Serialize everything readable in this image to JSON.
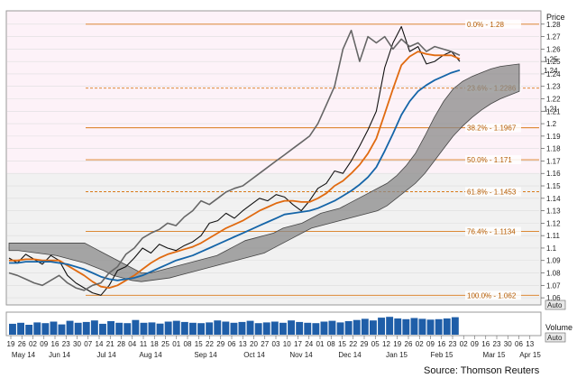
{
  "chart_data": {
    "type": "line",
    "title": "",
    "ylabel": "Price",
    "volume_label": "Volume",
    "auto_label": "Auto",
    "source": "Source: Thomson Reuters",
    "ylim": [
      1.055,
      1.29
    ],
    "y_ticks": [
      "1.28",
      "1.27",
      "1.26",
      "1.25",
      "1.24",
      "1.23",
      "1.22",
      "1.21",
      "1.2",
      "1.19",
      "1.18",
      "1.17",
      "1.16",
      "1.15",
      "1.14",
      "1.13",
      "1.12",
      "1.11",
      "1.1",
      "1.09",
      "1.08",
      "1.07",
      "1.06"
    ],
    "x_tick_days": [
      "19",
      "26",
      "02",
      "09",
      "16",
      "23",
      "30",
      "07",
      "14",
      "21",
      "28",
      "04",
      "11",
      "18",
      "25",
      "01",
      "08",
      "15",
      "22",
      "29",
      "06",
      "13",
      "20",
      "27",
      "03",
      "10",
      "17",
      "24",
      "01",
      "08",
      "15",
      "22",
      "29",
      "05",
      "12",
      "19",
      "26",
      "02",
      "09",
      "16",
      "23",
      "02",
      "09",
      "16",
      "23",
      "30",
      "06",
      "13"
    ],
    "x_month_labels": [
      "May 14",
      "Jun 14",
      "Jul 14",
      "Aug 14",
      "Sep 14",
      "Oct 14",
      "Nov 14",
      "Dec 14",
      "Jan 15",
      "Feb 15",
      "Mar 15",
      "Apr 15"
    ],
    "fib_levels": [
      {
        "label": "0.0% - 1.28",
        "value": 1.28
      },
      {
        "label": "23.6% - 1.2286",
        "value": 1.2286
      },
      {
        "label": "38.2% - 1.1967",
        "value": 1.1967
      },
      {
        "label": "50.0% - 1.171",
        "value": 1.171
      },
      {
        "label": "61.8% - 1.1453",
        "value": 1.1453
      },
      {
        "label": "76.4% - 1.1134",
        "value": 1.1134
      },
      {
        "label": "100.0% - 1.062",
        "value": 1.062
      }
    ],
    "last_price_markers": [
      "1.25",
      "1.24",
      "1.21"
    ],
    "series": [
      {
        "name": "",
        "color": "#111111",
        "values": [
          1.092,
          1.088,
          1.095,
          1.091,
          1.087,
          1.094,
          1.09,
          1.078,
          1.072,
          1.068,
          1.064,
          1.062,
          1.07,
          1.082,
          1.085,
          1.092,
          1.1,
          1.096,
          1.103,
          1.1,
          1.098,
          1.102,
          1.105,
          1.11,
          1.12,
          1.122,
          1.128,
          1.124,
          1.13,
          1.135,
          1.14,
          1.138,
          1.143,
          1.141,
          1.135,
          1.13,
          1.138,
          1.148,
          1.152,
          1.162,
          1.16,
          1.17,
          1.182,
          1.195,
          1.21,
          1.245,
          1.265,
          1.278,
          1.258,
          1.262,
          1.248,
          1.25,
          1.255,
          1.258,
          1.25
        ]
      },
      {
        "name": "",
        "color": "#e06a10",
        "values": [
          1.09,
          1.09,
          1.091,
          1.091,
          1.09,
          1.09,
          1.09,
          1.086,
          1.082,
          1.078,
          1.073,
          1.069,
          1.068,
          1.07,
          1.074,
          1.078,
          1.083,
          1.088,
          1.092,
          1.095,
          1.097,
          1.099,
          1.101,
          1.104,
          1.108,
          1.112,
          1.116,
          1.119,
          1.122,
          1.126,
          1.13,
          1.133,
          1.136,
          1.138,
          1.138,
          1.137,
          1.137,
          1.14,
          1.144,
          1.15,
          1.154,
          1.16,
          1.167,
          1.176,
          1.188,
          1.208,
          1.228,
          1.247,
          1.254,
          1.258,
          1.256,
          1.255,
          1.255,
          1.255,
          1.252
        ]
      },
      {
        "name": "",
        "color": "#1565a8",
        "values": [
          1.088,
          1.088,
          1.089,
          1.089,
          1.089,
          1.089,
          1.088,
          1.087,
          1.085,
          1.083,
          1.08,
          1.077,
          1.075,
          1.074,
          1.075,
          1.076,
          1.078,
          1.081,
          1.084,
          1.087,
          1.09,
          1.092,
          1.094,
          1.097,
          1.1,
          1.103,
          1.106,
          1.109,
          1.112,
          1.115,
          1.118,
          1.121,
          1.124,
          1.127,
          1.128,
          1.129,
          1.13,
          1.132,
          1.135,
          1.138,
          1.142,
          1.146,
          1.151,
          1.157,
          1.165,
          1.178,
          1.192,
          1.207,
          1.218,
          1.226,
          1.231,
          1.235,
          1.238,
          1.241,
          1.243
        ]
      },
      {
        "name": "",
        "color": "#666666",
        "values": [
          1.08,
          1.078,
          1.075,
          1.072,
          1.07,
          1.074,
          1.078,
          1.072,
          1.068,
          1.066,
          1.07,
          1.072,
          1.08,
          1.085,
          1.095,
          1.1,
          1.108,
          1.112,
          1.115,
          1.12,
          1.118,
          1.125,
          1.13,
          1.138,
          1.135,
          1.14,
          1.145,
          1.148,
          1.15,
          1.155,
          1.16,
          1.165,
          1.17,
          1.175,
          1.18,
          1.185,
          1.19,
          1.2,
          1.215,
          1.23,
          1.26,
          1.275,
          1.25,
          1.27,
          1.265,
          1.27,
          1.26,
          1.268,
          1.262,
          1.265,
          1.258,
          1.262,
          1.26,
          1.258,
          1.255
        ]
      }
    ],
    "cloud": {
      "upper": [
        1.104,
        1.104,
        1.104,
        1.104,
        1.104,
        1.104,
        1.104,
        1.104,
        1.104,
        1.1,
        1.096,
        1.092,
        1.088,
        1.084,
        1.08,
        1.08,
        1.082,
        1.084,
        1.086,
        1.088,
        1.09,
        1.092,
        1.094,
        1.098,
        1.102,
        1.106,
        1.108,
        1.11,
        1.112,
        1.116,
        1.118,
        1.12,
        1.124,
        1.128,
        1.13,
        1.132,
        1.136,
        1.14,
        1.144,
        1.148,
        1.152,
        1.158,
        1.166,
        1.176,
        1.19,
        1.205,
        1.218,
        1.228,
        1.234,
        1.238,
        1.241,
        1.244,
        1.246,
        1.247,
        1.248
      ],
      "lower": [
        1.098,
        1.098,
        1.097,
        1.096,
        1.095,
        1.094,
        1.092,
        1.09,
        1.088,
        1.085,
        1.082,
        1.078,
        1.076,
        1.074,
        1.073,
        1.074,
        1.075,
        1.076,
        1.078,
        1.08,
        1.082,
        1.084,
        1.086,
        1.088,
        1.09,
        1.092,
        1.094,
        1.096,
        1.1,
        1.104,
        1.108,
        1.112,
        1.116,
        1.118,
        1.12,
        1.122,
        1.124,
        1.126,
        1.128,
        1.13,
        1.134,
        1.14,
        1.146,
        1.152,
        1.16,
        1.17,
        1.18,
        1.19,
        1.198,
        1.205,
        1.211,
        1.216,
        1.22,
        1.223,
        1.226
      ]
    },
    "volume": [
      0.55,
      0.6,
      0.5,
      0.62,
      0.58,
      0.66,
      0.52,
      0.7,
      0.6,
      0.64,
      0.72,
      0.55,
      0.68,
      0.6,
      0.58,
      0.74,
      0.6,
      0.62,
      0.56,
      0.66,
      0.7,
      0.64,
      0.6,
      0.58,
      0.62,
      0.72,
      0.66,
      0.6,
      0.64,
      0.7,
      0.58,
      0.62,
      0.66,
      0.6,
      0.72,
      0.64,
      0.6,
      0.58,
      0.66,
      0.7,
      0.62,
      0.68,
      0.74,
      0.8,
      0.72,
      0.86,
      0.9,
      0.82,
      0.78,
      0.84,
      0.8,
      0.76,
      0.78,
      0.82,
      0.88
    ],
    "colors": {
      "plot_bg_upper": "#fdf2f8",
      "plot_bg_lower": "#f1f1f1",
      "grid": "#dddddd",
      "fib": "#d97a1a",
      "cloud": "#8a8a8a",
      "volume": "#1f5ea8"
    }
  }
}
